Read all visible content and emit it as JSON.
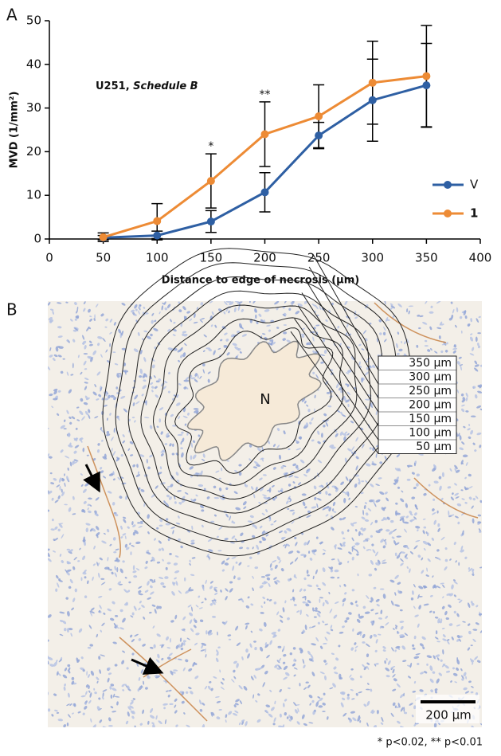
{
  "panel_labels": [
    "A",
    "B"
  ],
  "chart_data": {
    "type": "line",
    "annotation": [
      "U251, ",
      "Schedule B"
    ],
    "xlabel": "Distance to edge of necrosis (μm)",
    "ylabel": "MVD (1/mm²)",
    "x": [
      50,
      100,
      150,
      200,
      250,
      300,
      350
    ],
    "series": [
      {
        "name": "V",
        "color": "#2e5fa3",
        "values": [
          0.3,
          0.8,
          4.0,
          10.7,
          23.7,
          31.8,
          35.2
        ],
        "errors": [
          0.5,
          1.0,
          2.5,
          4.5,
          3.0,
          9.4,
          9.6
        ]
      },
      {
        "name": "1",
        "color": "#ed8b35",
        "values": [
          0.4,
          4.1,
          13.3,
          24.0,
          28.1,
          35.8,
          37.3
        ],
        "errors": [
          1.0,
          4.0,
          6.2,
          7.4,
          7.2,
          9.5,
          11.6
        ]
      }
    ],
    "significance": [
      {
        "x": 150,
        "label": "*"
      },
      {
        "x": 200,
        "label": "**"
      }
    ],
    "xlim": [
      0,
      400
    ],
    "xticks": [
      0,
      50,
      100,
      150,
      200,
      250,
      300,
      350,
      400
    ],
    "ylim": [
      0,
      50
    ],
    "yticks": [
      0,
      10,
      20,
      30,
      40,
      50
    ],
    "legend": "lower right",
    "grid": false
  },
  "panel_b": {
    "contour_labels": [
      "350 μm",
      "300 μm",
      "250 μm",
      "200 μm",
      "150 μm",
      "100 μm",
      "50 μm"
    ],
    "necrosis_label": "N",
    "scale_bar": "200 μm"
  },
  "footnote": "* p<0.02, ** p<0.01"
}
